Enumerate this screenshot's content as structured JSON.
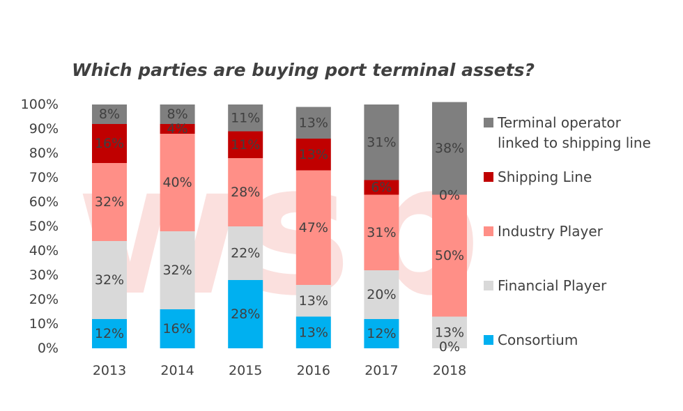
{
  "chart_data": {
    "type": "bar",
    "stacked": true,
    "title": "Which parties are buying port terminal assets?",
    "xlabel": "",
    "ylabel": "",
    "categories": [
      "2013",
      "2014",
      "2015",
      "2016",
      "2017",
      "2018"
    ],
    "y_ticks": [
      "0%",
      "10%",
      "20%",
      "30%",
      "40%",
      "50%",
      "60%",
      "70%",
      "80%",
      "90%",
      "100%"
    ],
    "ylim": [
      0,
      100
    ],
    "grid": false,
    "legend_position": "right",
    "series": [
      {
        "name": "Consortium",
        "color": "#00b0f0",
        "values": [
          12,
          16,
          28,
          13,
          12,
          0
        ],
        "labels": [
          "12%",
          "16%",
          "28%",
          "13%",
          "12%",
          "0%"
        ]
      },
      {
        "name": "Financial Player",
        "color": "#d9d9d9",
        "values": [
          32,
          32,
          22,
          13,
          20,
          13
        ],
        "labels": [
          "32%",
          "32%",
          "22%",
          "13%",
          "20%",
          "13%"
        ]
      },
      {
        "name": "Industry Player",
        "color": "#ff8f87",
        "values": [
          32,
          40,
          28,
          47,
          31,
          50
        ],
        "labels": [
          "32%",
          "40%",
          "28%",
          "47%",
          "31%",
          "50%"
        ]
      },
      {
        "name": "Shipping Line",
        "color": "#c00000",
        "values": [
          16,
          4,
          11,
          13,
          6,
          0
        ],
        "labels": [
          "16%",
          "4%",
          "11%",
          "13%",
          "6%",
          "0%"
        ]
      },
      {
        "name": "Terminal operator linked to shipping line",
        "color": "#7f7f7f",
        "values": [
          8,
          8,
          11,
          13,
          31,
          38
        ],
        "labels": [
          "8%",
          "8%",
          "11%",
          "13%",
          "31%",
          "38%"
        ]
      }
    ],
    "legend_lines": [
      [
        "Terminal operator",
        "linked to shipping line"
      ],
      [
        "Shipping Line"
      ],
      [
        "Industry Player"
      ],
      [
        "Financial Player"
      ],
      [
        "Consortium"
      ]
    ],
    "watermark": "wsp",
    "watermark_color": "#f8c8c4"
  }
}
